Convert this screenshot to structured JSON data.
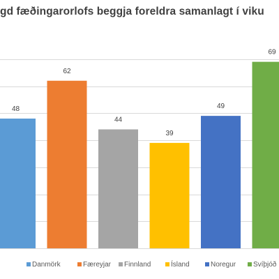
{
  "chart_data": {
    "type": "bar",
    "title": "gd fæðingarorlofs  beggja foreldra samanlagt  í viku",
    "categories": [
      "Danmörk",
      "Færeyjar",
      "Finnland",
      "Ísland",
      "Noregur",
      "Svíþjóð"
    ],
    "values": [
      48,
      62,
      44,
      39,
      49,
      69
    ],
    "colors": [
      "#5b9bd5",
      "#ed7d31",
      "#a5a5a5",
      "#ffc000",
      "#4472c4",
      "#70ad47"
    ],
    "ylim": [
      0,
      80
    ],
    "grid": true,
    "legend": "bottom",
    "xlabel": "",
    "ylabel": ""
  }
}
